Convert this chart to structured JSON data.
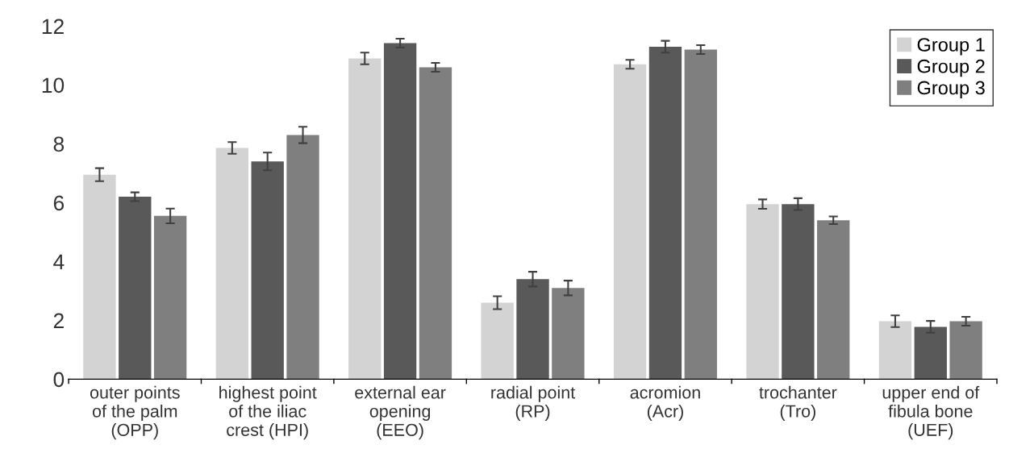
{
  "chart_data": {
    "type": "bar",
    "categories": [
      "outer points\nof the palm\n(OPP)",
      "highest point\nof the iliac\ncrest (HPI)",
      "external ear\nopening\n(EEO)",
      "radial point\n(RP)",
      "acromion\n(Acr)",
      "trochanter\n(Tro)",
      "upper end of\nfibula bone\n(UEF)"
    ],
    "series": [
      {
        "name": "Group 1",
        "color": "#d3d3d3",
        "values": [
          6.95,
          7.86,
          10.9,
          2.6,
          10.7,
          5.95,
          1.97
        ],
        "errors": [
          0.22,
          0.2,
          0.2,
          0.22,
          0.15,
          0.16,
          0.2
        ]
      },
      {
        "name": "Group 2",
        "color": "#595959",
        "values": [
          6.2,
          7.4,
          11.42,
          3.4,
          11.3,
          5.95,
          1.78
        ],
        "errors": [
          0.15,
          0.3,
          0.15,
          0.25,
          0.2,
          0.2,
          0.2
        ]
      },
      {
        "name": "Group 3",
        "color": "#7f7f7f",
        "values": [
          5.55,
          8.3,
          10.6,
          3.1,
          11.2,
          5.4,
          1.97
        ],
        "errors": [
          0.25,
          0.28,
          0.15,
          0.25,
          0.15,
          0.13,
          0.15
        ]
      }
    ],
    "ylim": [
      0,
      12
    ],
    "yticks": [
      0,
      2,
      4,
      6,
      8,
      10,
      12
    ],
    "grid": false,
    "legend": "top right"
  }
}
